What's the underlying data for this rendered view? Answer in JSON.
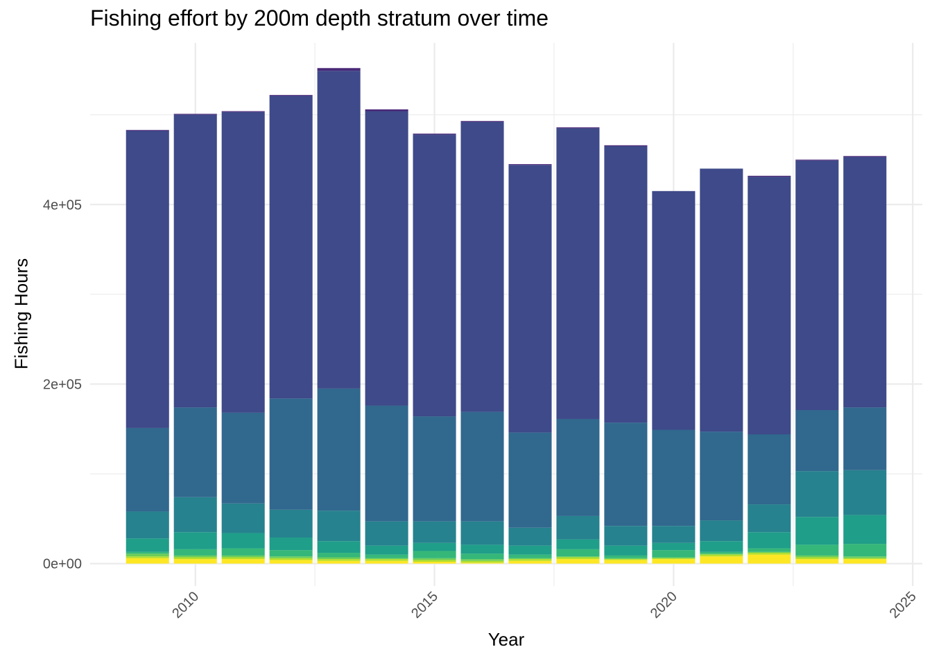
{
  "chart_data": {
    "type": "bar",
    "stacked": true,
    "title": "Fishing effort by 200m depth stratum over time",
    "xlabel": "Year",
    "ylabel": "Fishing Hours",
    "xlim": [
      2007.8,
      2025.2
    ],
    "ylim": [
      -25000,
      580000
    ],
    "x_ticks": [
      2010,
      2015,
      2020,
      2025
    ],
    "x_tick_labels": [
      "2010",
      "2015",
      "2020",
      "2025"
    ],
    "y_ticks": [
      0,
      200000,
      400000
    ],
    "y_tick_labels": [
      "0e+00",
      "2e+05",
      "4e+05"
    ],
    "grid": true,
    "legend": "none",
    "categories": [
      2009,
      2010,
      2011,
      2012,
      2013,
      2014,
      2015,
      2016,
      2017,
      2018,
      2019,
      2020,
      2021,
      2022,
      2023,
      2024
    ],
    "series": [
      {
        "color": "#FDE725",
        "values": [
          6000,
          5000,
          5000,
          4000,
          3000,
          3000,
          2000,
          1000,
          3000,
          5000,
          4000,
          5000,
          8000,
          10000,
          5000,
          5000
        ]
      },
      {
        "color": "#B4DE2C",
        "values": [
          2000,
          2000,
          2000,
          2000,
          2000,
          2000,
          2000,
          2000,
          2000,
          2000,
          1000,
          1000,
          2000,
          2000,
          2000,
          1000
        ]
      },
      {
        "color": "#6DCD59",
        "values": [
          3000,
          2000,
          2000,
          2000,
          2000,
          1000,
          2000,
          2000,
          1000,
          1000,
          1000,
          1000,
          1000,
          1000,
          2000,
          2000
        ]
      },
      {
        "color": "#35B779",
        "values": [
          2000,
          7000,
          8000,
          7000,
          5000,
          4000,
          8000,
          6000,
          4000,
          8000,
          3000,
          8000,
          2000,
          4000,
          12000,
          14000
        ]
      },
      {
        "color": "#1F9E89",
        "values": [
          15000,
          19000,
          17000,
          14000,
          13000,
          10000,
          9000,
          10000,
          10000,
          11000,
          11000,
          8000,
          12000,
          18000,
          31000,
          32000
        ]
      },
      {
        "color": "#26828E",
        "values": [
          30000,
          39000,
          33000,
          31000,
          34000,
          27000,
          24000,
          26000,
          20000,
          26000,
          22000,
          19000,
          23000,
          31000,
          51000,
          50000
        ]
      },
      {
        "color": "#31688E",
        "values": [
          93000,
          100000,
          101000,
          124000,
          136000,
          129000,
          117000,
          122000,
          106000,
          108000,
          115000,
          107000,
          99000,
          78000,
          68000,
          70000
        ]
      },
      {
        "color": "#3E4A89",
        "values": [
          331000,
          326000,
          335000,
          337000,
          354000,
          328000,
          314000,
          323000,
          298000,
          324000,
          308000,
          266000,
          293000,
          287000,
          278000,
          279000
        ]
      },
      {
        "color": "#482878",
        "values": [
          1000,
          1000,
          1000,
          1000,
          3000,
          2000,
          1000,
          1000,
          1000,
          1000,
          1000,
          0,
          0,
          1000,
          1000,
          1000
        ]
      }
    ]
  }
}
